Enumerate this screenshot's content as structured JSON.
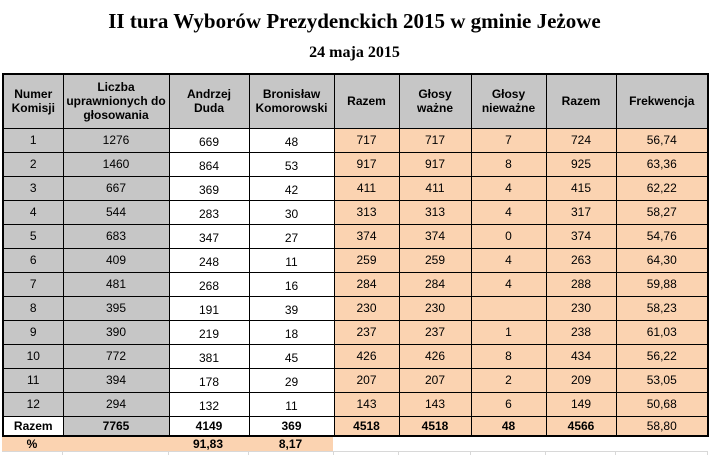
{
  "title": "II tura Wyborów Prezydenckich 2015 w gminie Jeżowe",
  "subtitle": "24 maja 2015",
  "colors": {
    "header_bg": "#C6C6C6",
    "left_columns_bg": "#C6C6C6",
    "results_bg": "#FBD3B1",
    "table_border": "#000000",
    "excel_gridline": "#D8D8D8",
    "text": "#000000"
  },
  "table": {
    "headers": [
      "Numer Komisji",
      "Liczba uprawnionych do głosowania",
      "Andrzej Duda",
      "Bronisław Komorowski",
      "Razem",
      "Głosy ważne",
      "Głosy nieważne",
      "Razem",
      "Frekwencja"
    ],
    "rows": [
      [
        "1",
        "1276",
        "669",
        "48",
        "717",
        "717",
        "7",
        "724",
        "56,74"
      ],
      [
        "2",
        "1460",
        "864",
        "53",
        "917",
        "917",
        "8",
        "925",
        "63,36"
      ],
      [
        "3",
        "667",
        "369",
        "42",
        "411",
        "411",
        "4",
        "415",
        "62,22"
      ],
      [
        "4",
        "544",
        "283",
        "30",
        "313",
        "313",
        "4",
        "317",
        "58,27"
      ],
      [
        "5",
        "683",
        "347",
        "27",
        "374",
        "374",
        "0",
        "374",
        "54,76"
      ],
      [
        "6",
        "409",
        "248",
        "11",
        "259",
        "259",
        "4",
        "263",
        "64,30"
      ],
      [
        "7",
        "481",
        "268",
        "16",
        "284",
        "284",
        "4",
        "288",
        "59,88"
      ],
      [
        "8",
        "395",
        "191",
        "39",
        "230",
        "230",
        "",
        "230",
        "58,23"
      ],
      [
        "9",
        "390",
        "219",
        "18",
        "237",
        "237",
        "1",
        "238",
        "61,03"
      ],
      [
        "10",
        "772",
        "381",
        "45",
        "426",
        "426",
        "8",
        "434",
        "56,22"
      ],
      [
        "11",
        "394",
        "178",
        "29",
        "207",
        "207",
        "2",
        "209",
        "53,05"
      ],
      [
        "12",
        "294",
        "132",
        "11",
        "143",
        "143",
        "6",
        "149",
        "50,68"
      ]
    ],
    "total_row": [
      "Razem",
      "7765",
      "4149",
      "369",
      "4518",
      "4518",
      "48",
      "4566",
      "58,80"
    ],
    "percent_row": [
      "%",
      "",
      "91,83",
      "8,17",
      "",
      "",
      "",
      "",
      ""
    ]
  }
}
